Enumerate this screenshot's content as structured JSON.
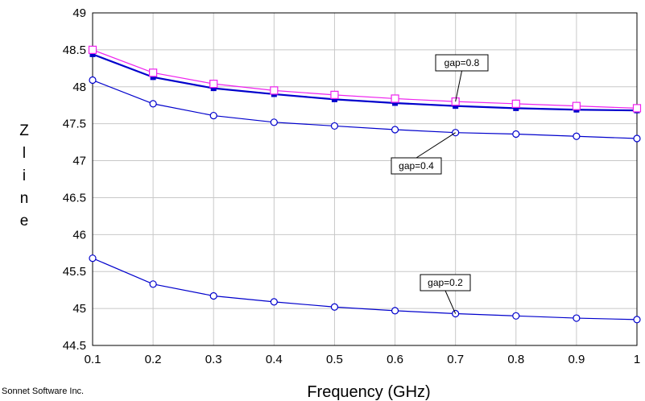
{
  "credit": "Sonnet Software Inc.",
  "chart_data": {
    "type": "line",
    "xlabel": "Frequency (GHz)",
    "ylabel": "Zline",
    "x": [
      0.1,
      0.2,
      0.3,
      0.4,
      0.5,
      0.6,
      0.7,
      0.8,
      0.9,
      1
    ],
    "xlim": [
      0.1,
      1
    ],
    "ylim": [
      44.5,
      49
    ],
    "xticks": [
      "0.1",
      "0.2",
      "0.3",
      "0.4",
      "0.5",
      "0.6",
      "0.7",
      "0.8",
      "0.9",
      "1"
    ],
    "yticks": [
      "44.5",
      "45",
      "45.5",
      "46",
      "46.5",
      "47",
      "47.5",
      "48",
      "48.5",
      "49"
    ],
    "grid": true,
    "series": [
      {
        "color": "#0000cc",
        "marker": "circle",
        "values": [
          45.68,
          45.33,
          45.17,
          45.09,
          45.02,
          44.97,
          44.93,
          44.9,
          44.87,
          44.85
        ]
      },
      {
        "color": "#0000cc",
        "marker": "circle",
        "values": [
          48.09,
          47.77,
          47.61,
          47.52,
          47.47,
          47.42,
          47.38,
          47.36,
          47.33,
          47.3
        ]
      },
      {
        "color": "#0000cc",
        "marker": "filled-square",
        "values": [
          48.44,
          48.13,
          47.98,
          47.9,
          47.83,
          47.78,
          47.74,
          47.71,
          47.69,
          47.68
        ]
      },
      {
        "color": "#ee22ee",
        "marker": "square",
        "values": [
          48.5,
          48.19,
          48.04,
          47.95,
          47.89,
          47.84,
          47.8,
          47.77,
          47.74,
          47.71
        ]
      }
    ],
    "annotations": [
      {
        "text": "gap=0.8",
        "x": 0.7,
        "y": 47.8
      },
      {
        "text": "gap=0.4",
        "x": 0.7,
        "y": 47.38
      },
      {
        "text": "gap=0.2",
        "x": 0.7,
        "y": 44.93
      }
    ]
  }
}
